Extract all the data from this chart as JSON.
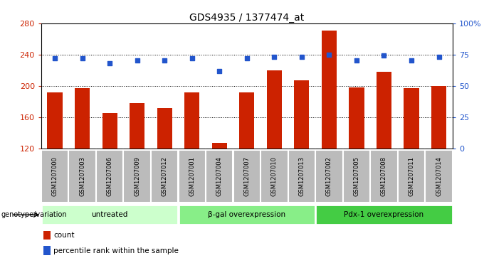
{
  "title": "GDS4935 / 1377474_at",
  "samples": [
    "GSM1207000",
    "GSM1207003",
    "GSM1207006",
    "GSM1207009",
    "GSM1207012",
    "GSM1207001",
    "GSM1207004",
    "GSM1207007",
    "GSM1207010",
    "GSM1207013",
    "GSM1207002",
    "GSM1207005",
    "GSM1207008",
    "GSM1207011",
    "GSM1207014"
  ],
  "counts": [
    192,
    197,
    165,
    178,
    172,
    192,
    127,
    192,
    220,
    207,
    271,
    198,
    218,
    197,
    200
  ],
  "percentiles": [
    72,
    72,
    68,
    70,
    70,
    72,
    62,
    72,
    73,
    73,
    75,
    70,
    74,
    70,
    73
  ],
  "groups": [
    {
      "label": "untreated",
      "start": 0,
      "end": 5
    },
    {
      "label": "β-gal overexpression",
      "start": 5,
      "end": 10
    },
    {
      "label": "Pdx-1 overexpression",
      "start": 10,
      "end": 15
    }
  ],
  "bar_color": "#CC2200",
  "dot_color": "#2255CC",
  "group_color_untreated": "#CCFFCC",
  "group_color_bgal": "#88EE88",
  "group_color_pdx": "#44CC44",
  "ylim_left": [
    120,
    280
  ],
  "yticks_left": [
    120,
    160,
    200,
    240,
    280
  ],
  "ylim_right": [
    0,
    100
  ],
  "yticks_right": [
    0,
    25,
    50,
    75,
    100
  ],
  "xticklabel_bg": "#BBBBBB",
  "legend_count_label": "count",
  "legend_percentile_label": "percentile rank within the sample",
  "genotype_label": "genotype/variation"
}
